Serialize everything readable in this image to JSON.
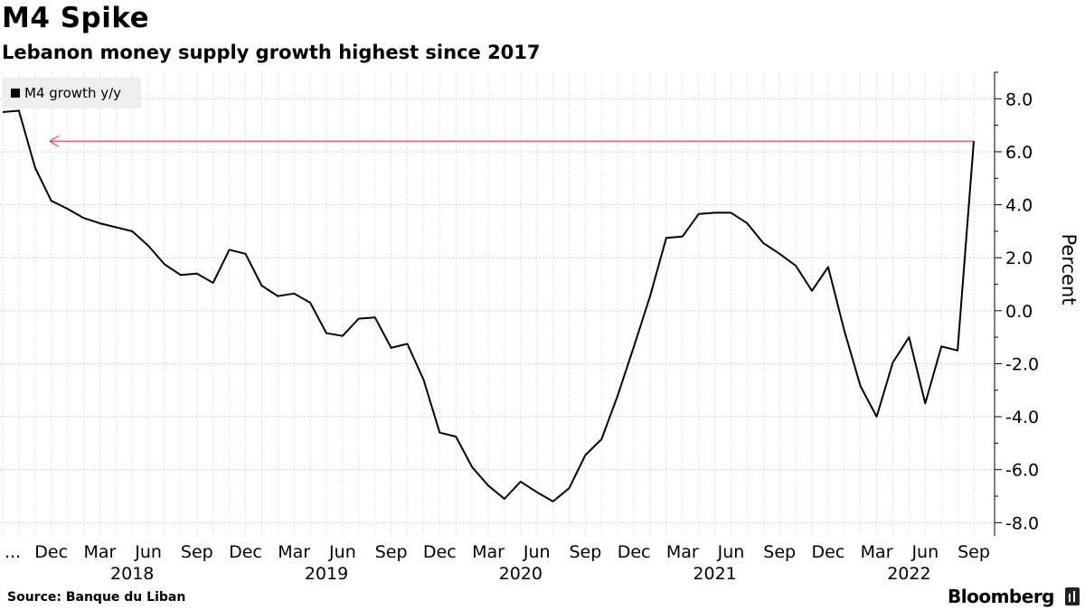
{
  "header": {
    "title": "M4 Spike",
    "subtitle": "Lebanon money supply growth highest since 2017"
  },
  "legend": {
    "label": "M4 growth y/y"
  },
  "footer": {
    "source": "Source: Banque du Liban",
    "brand": "Bloomberg"
  },
  "colors": {
    "line": "#000000",
    "reference_line": "#e8485f",
    "grid": "#cccccc",
    "legend_bg": "#eeeeee"
  },
  "chart_data": {
    "type": "line",
    "title": "M4 Spike",
    "subtitle": "Lebanon money supply growth highest since 2017",
    "ylabel": "Percent",
    "ylim": [
      -8.5,
      9.0
    ],
    "y_ticks": [
      "8.0",
      "6.0",
      "4.0",
      "2.0",
      "0.0",
      "-2.0",
      "-4.0",
      "-6.0",
      "-8.0"
    ],
    "y_tick_values": [
      8,
      6,
      4,
      2,
      0,
      -2,
      -4,
      -6,
      -8
    ],
    "y_axis_side": "right",
    "grid": true,
    "legend_position": "top-left",
    "x_tick_labels": [
      "...",
      "Dec",
      "Mar",
      "Jun",
      "Sep",
      "Dec",
      "Mar",
      "Jun",
      "Sep",
      "Dec",
      "Mar",
      "Jun",
      "Sep",
      "Dec",
      "Mar",
      "Jun",
      "Sep",
      "Dec",
      "Mar",
      "Jun",
      "Sep"
    ],
    "x_tick_dates": [
      "2017-08",
      "2017-12",
      "2018-03",
      "2018-06",
      "2018-09",
      "2018-12",
      "2019-03",
      "2019-06",
      "2019-09",
      "2019-12",
      "2020-03",
      "2020-06",
      "2020-09",
      "2020-12",
      "2021-03",
      "2021-06",
      "2021-09",
      "2021-12",
      "2022-03",
      "2022-06",
      "2022-09"
    ],
    "year_labels": [
      "2018",
      "2019",
      "2020",
      "2021",
      "2022"
    ],
    "year_label_dates": [
      "2018-05",
      "2019-05",
      "2020-05",
      "2021-05",
      "2022-05"
    ],
    "series": [
      {
        "name": "M4 growth y/y",
        "x": [
          "2017-09",
          "2017-10",
          "2017-11",
          "2017-12",
          "2018-01",
          "2018-02",
          "2018-03",
          "2018-04",
          "2018-05",
          "2018-06",
          "2018-07",
          "2018-08",
          "2018-09",
          "2018-10",
          "2018-11",
          "2018-12",
          "2019-01",
          "2019-02",
          "2019-03",
          "2019-04",
          "2019-05",
          "2019-06",
          "2019-07",
          "2019-08",
          "2019-09",
          "2019-10",
          "2019-11",
          "2019-12",
          "2020-01",
          "2020-02",
          "2020-03",
          "2020-04",
          "2020-05",
          "2020-06",
          "2020-07",
          "2020-08",
          "2020-09",
          "2020-10",
          "2020-11",
          "2020-12",
          "2021-01",
          "2021-02",
          "2021-03",
          "2021-04",
          "2021-05",
          "2021-06",
          "2021-07",
          "2021-08",
          "2021-09",
          "2021-10",
          "2021-11",
          "2021-12",
          "2022-01",
          "2022-02",
          "2022-03",
          "2022-04",
          "2022-05",
          "2022-06",
          "2022-07",
          "2022-08",
          "2022-09"
        ],
        "values": [
          7.5,
          7.55,
          5.4,
          4.15,
          3.85,
          3.5,
          3.3,
          3.15,
          3.0,
          2.45,
          1.75,
          1.35,
          1.4,
          1.05,
          2.3,
          2.15,
          0.95,
          0.55,
          0.65,
          0.3,
          -0.85,
          -0.95,
          -0.3,
          -0.25,
          -1.4,
          -1.25,
          -2.6,
          -4.6,
          -4.75,
          -5.9,
          -6.6,
          -7.1,
          -6.45,
          -6.85,
          -7.2,
          -6.7,
          -5.45,
          -4.85,
          -3.2,
          -1.35,
          0.55,
          2.75,
          2.8,
          3.65,
          3.7,
          3.7,
          3.3,
          2.55,
          2.15,
          1.7,
          0.75,
          1.65,
          -0.75,
          -2.85,
          -4.0,
          -1.95,
          -1.0,
          -3.5,
          -1.35,
          -1.5,
          6.4
        ]
      }
    ],
    "reference_line": {
      "value": 6.4,
      "direction": "leftward",
      "color": "#e8485f"
    }
  }
}
